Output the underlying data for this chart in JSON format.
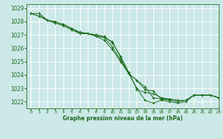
{
  "title": "Graphe pression niveau de la mer (hPa)",
  "bg_color": "#cce8e8",
  "grid_color": "#ffffff",
  "line_color": "#1a6b1a",
  "xlim": [
    -0.5,
    23
  ],
  "ylim": [
    1021.5,
    1029.3
  ],
  "yticks": [
    1022,
    1023,
    1024,
    1025,
    1026,
    1027,
    1028,
    1029
  ],
  "xticks": [
    0,
    1,
    2,
    3,
    4,
    5,
    6,
    7,
    8,
    9,
    10,
    11,
    12,
    13,
    14,
    15,
    16,
    17,
    18,
    19,
    20,
    21,
    22,
    23
  ],
  "series": [
    [
      1028.6,
      1028.6,
      1028.1,
      1028.0,
      1027.8,
      1027.5,
      1027.2,
      1027.1,
      1026.9,
      1026.8,
      1026.5,
      1025.3,
      1024.1,
      1023.0,
      1022.1,
      1021.9,
      1022.1,
      1022.0,
      1021.9,
      1022.0,
      1022.5,
      1022.5,
      1022.5,
      1022.3
    ],
    [
      1028.6,
      1028.6,
      1028.1,
      1027.9,
      1027.7,
      1027.4,
      1027.2,
      1027.1,
      1026.9,
      1026.6,
      1025.9,
      1025.0,
      1024.1,
      1023.6,
      1022.9,
      1022.8,
      1022.2,
      1022.1,
      1022.0,
      1022.1,
      1022.5,
      1022.5,
      1022.5,
      1022.3
    ],
    [
      1028.6,
      1028.4,
      1028.1,
      1027.9,
      1027.7,
      1027.4,
      1027.1,
      1027.1,
      1027.0,
      1026.9,
      1026.4,
      1025.4,
      1024.2,
      1022.9,
      1022.7,
      1022.6,
      1022.3,
      1022.2,
      1022.1,
      1022.1,
      1022.5,
      1022.5,
      1022.5,
      1022.3
    ],
    [
      1028.6,
      1028.4,
      1028.1,
      1027.9,
      1027.7,
      1027.4,
      1027.1,
      1027.1,
      1027.0,
      1026.8,
      1026.1,
      1025.1,
      1024.1,
      1023.6,
      1023.1,
      1022.3,
      1022.2,
      1022.2,
      1022.1,
      1022.1,
      1022.5,
      1022.5,
      1022.5,
      1022.3
    ]
  ]
}
